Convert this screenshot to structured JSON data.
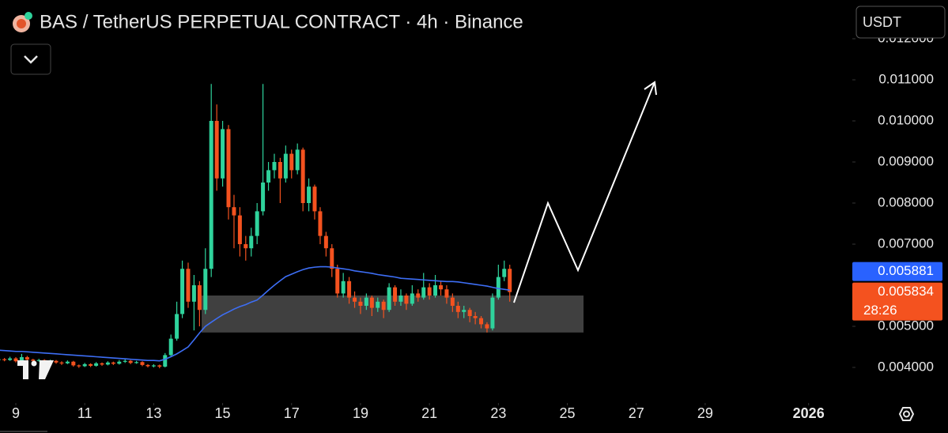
{
  "header": {
    "title": "BAS / TetherUS PERPETUAL CONTRACT · 4h · Binance",
    "currency": "USDT"
  },
  "chart_data": {
    "type": "candlestick",
    "x": [
      8.5,
      8.67,
      8.83,
      9,
      9.17,
      9.33,
      9.5,
      9.67,
      9.83,
      10,
      10.17,
      10.33,
      10.5,
      10.67,
      10.83,
      11,
      11.17,
      11.33,
      11.5,
      11.67,
      11.83,
      12,
      12.17,
      12.33,
      12.5,
      12.67,
      12.83,
      13,
      13.17,
      13.33,
      13.5,
      13.67,
      13.83,
      14,
      14.17,
      14.33,
      14.5,
      14.67,
      14.83,
      15,
      15.17,
      15.33,
      15.5,
      15.67,
      15.83,
      16,
      16.17,
      16.33,
      16.5,
      16.67,
      16.83,
      17,
      17.17,
      17.33,
      17.5,
      17.67,
      17.83,
      18,
      18.17,
      18.33,
      18.5,
      18.67,
      18.83,
      19,
      19.17,
      19.33,
      19.5,
      19.67,
      19.83,
      20,
      20.17,
      20.33,
      20.5,
      20.67,
      20.83,
      21,
      21.17,
      21.33,
      21.5,
      21.67,
      21.83,
      22,
      22.17,
      22.33,
      22.5,
      22.67,
      22.83,
      23,
      23.17,
      23.33
    ],
    "open": [
      0.00418,
      0.0042,
      0.00418,
      0.00422,
      0.00415,
      0.00425,
      0.00419,
      0.00416,
      0.00418,
      0.00414,
      0.00416,
      0.00412,
      0.0041,
      0.00414,
      0.00405,
      0.00403,
      0.00408,
      0.00404,
      0.0041,
      0.00407,
      0.00412,
      0.00409,
      0.00414,
      0.00416,
      0.00411,
      0.00413,
      0.00406,
      0.00403,
      0.00405,
      0.00402,
      0.0043,
      0.0047,
      0.0053,
      0.0064,
      0.0056,
      0.006,
      0.0054,
      0.0064,
      0.01,
      0.0086,
      0.0098,
      0.0079,
      0.0077,
      0.007,
      0.0069,
      0.0072,
      0.0078,
      0.0085,
      0.0088,
      0.009,
      0.0086,
      0.0092,
      0.0088,
      0.0093,
      0.008,
      0.0084,
      0.0078,
      0.0072,
      0.0069,
      0.0064,
      0.0058,
      0.0061,
      0.0057,
      0.0056,
      0.0055,
      0.0057,
      0.00545,
      0.0056,
      0.0054,
      0.00595,
      0.0056,
      0.00575,
      0.00555,
      0.0058,
      0.0057,
      0.00595,
      0.00575,
      0.006,
      0.0059,
      0.0057,
      0.0055,
      0.00535,
      0.0054,
      0.00525,
      0.0052,
      0.00505,
      0.00495,
      0.0057,
      0.0062,
      0.0064
    ],
    "high": [
      0.00424,
      0.00423,
      0.00426,
      0.00425,
      0.00433,
      0.00428,
      0.00421,
      0.00421,
      0.0042,
      0.00419,
      0.00418,
      0.00415,
      0.00417,
      0.00416,
      0.00407,
      0.00411,
      0.0041,
      0.00413,
      0.00412,
      0.00415,
      0.00414,
      0.00418,
      0.0042,
      0.00418,
      0.00416,
      0.00415,
      0.00408,
      0.00408,
      0.00407,
      0.00435,
      0.0048,
      0.0056,
      0.0066,
      0.00655,
      0.00625,
      0.0061,
      0.0069,
      0.0109,
      0.0104,
      0.01,
      0.0099,
      0.0082,
      0.0079,
      0.0072,
      0.0074,
      0.008,
      0.0109,
      0.009,
      0.0092,
      0.0091,
      0.0094,
      0.0093,
      0.00945,
      0.00935,
      0.0086,
      0.00845,
      0.0079,
      0.0073,
      0.007,
      0.0065,
      0.0063,
      0.0062,
      0.00585,
      0.0057,
      0.0058,
      0.00575,
      0.0057,
      0.00565,
      0.00605,
      0.006,
      0.0059,
      0.0058,
      0.006,
      0.0059,
      0.0063,
      0.00605,
      0.00625,
      0.0061,
      0.006,
      0.0058,
      0.0056,
      0.0055,
      0.00545,
      0.00535,
      0.00525,
      0.0051,
      0.0058,
      0.0065,
      0.0066,
      0.0065
    ],
    "low": [
      0.00414,
      0.00415,
      0.00416,
      0.00412,
      0.00413,
      0.00416,
      0.00413,
      0.00414,
      0.00411,
      0.00412,
      0.00409,
      0.00406,
      0.00408,
      0.00402,
      0.00399,
      0.00401,
      0.00401,
      0.00402,
      0.00404,
      0.00405,
      0.00406,
      0.00407,
      0.00411,
      0.00408,
      0.00409,
      0.00403,
      0.004,
      0.004,
      0.00398,
      0.004,
      0.00425,
      0.00465,
      0.0052,
      0.00545,
      0.0049,
      0.005,
      0.0053,
      0.0062,
      0.0083,
      0.0084,
      0.0076,
      0.0069,
      0.0067,
      0.0066,
      0.0067,
      0.007,
      0.0077,
      0.0083,
      0.0086,
      0.008,
      0.0085,
      0.0086,
      0.0087,
      0.0078,
      0.0078,
      0.0076,
      0.007,
      0.0067,
      0.0062,
      0.0057,
      0.0057,
      0.00555,
      0.00545,
      0.0053,
      0.0054,
      0.00525,
      0.00535,
      0.0052,
      0.00535,
      0.0055,
      0.0055,
      0.0054,
      0.0055,
      0.0056,
      0.00565,
      0.00565,
      0.0057,
      0.00575,
      0.00555,
      0.00535,
      0.0052,
      0.0052,
      0.0051,
      0.00505,
      0.00495,
      0.00485,
      0.0049,
      0.00565,
      0.0061,
      0.0056
    ],
    "close": [
      0.0042,
      0.00418,
      0.00422,
      0.00415,
      0.00425,
      0.00419,
      0.00416,
      0.00418,
      0.00414,
      0.00416,
      0.00412,
      0.0041,
      0.00414,
      0.00405,
      0.00403,
      0.00408,
      0.00404,
      0.0041,
      0.00407,
      0.00412,
      0.00409,
      0.00414,
      0.00416,
      0.00411,
      0.00413,
      0.00406,
      0.00403,
      0.00405,
      0.00402,
      0.0043,
      0.0047,
      0.0053,
      0.0064,
      0.0056,
      0.006,
      0.0054,
      0.0064,
      0.01,
      0.0086,
      0.0098,
      0.0079,
      0.0077,
      0.007,
      0.0069,
      0.0072,
      0.0078,
      0.0085,
      0.0088,
      0.009,
      0.0086,
      0.0092,
      0.0088,
      0.0093,
      0.008,
      0.0084,
      0.0078,
      0.0072,
      0.0069,
      0.0064,
      0.0058,
      0.0061,
      0.0057,
      0.0056,
      0.0055,
      0.0057,
      0.00545,
      0.0056,
      0.0054,
      0.00595,
      0.0056,
      0.00575,
      0.00555,
      0.0058,
      0.0057,
      0.00595,
      0.00575,
      0.006,
      0.0059,
      0.0057,
      0.0055,
      0.00535,
      0.0054,
      0.00525,
      0.0052,
      0.00505,
      0.00495,
      0.0057,
      0.0062,
      0.0064,
      0.005834
    ],
    "up_color": "#2fd39c",
    "down_color": "#f4521f",
    "moving_average": {
      "color": "#3d6ef5",
      "values": [
        0.00442,
        0.00441,
        0.0044,
        0.00439,
        0.00439,
        0.00438,
        0.00437,
        0.00436,
        0.00435,
        0.00434,
        0.00433,
        0.00432,
        0.00431,
        0.0043,
        0.00429,
        0.00428,
        0.00427,
        0.00426,
        0.00425,
        0.00424,
        0.00423,
        0.00422,
        0.00421,
        0.0042,
        0.00419,
        0.00418,
        0.00417,
        0.00417,
        0.00416,
        0.0042,
        0.00426,
        0.00433,
        0.00441,
        0.0045,
        0.00467,
        0.00484,
        0.005,
        0.0051,
        0.00519,
        0.00528,
        0.00535,
        0.00542,
        0.00548,
        0.00553,
        0.00559,
        0.00564,
        0.00576,
        0.00588,
        0.006,
        0.00611,
        0.00621,
        0.00627,
        0.00633,
        0.00638,
        0.00642,
        0.00644,
        0.00645,
        0.00645,
        0.00644,
        0.00642,
        0.0064,
        0.00638,
        0.00635,
        0.00633,
        0.00631,
        0.00629,
        0.00626,
        0.00624,
        0.00622,
        0.0062,
        0.00617,
        0.00616,
        0.00615,
        0.00614,
        0.00613,
        0.00612,
        0.00611,
        0.0061,
        0.00609,
        0.00609,
        0.00608,
        0.00606,
        0.00604,
        0.00602,
        0.006,
        0.00598,
        0.00595,
        0.00592,
        0.0059,
        0.005881
      ]
    },
    "zone": {
      "x": [
        14.39,
        25.47
      ],
      "y": [
        0.00485,
        0.00575
      ],
      "color": "#555555"
    },
    "xlim": [
      8.541,
      33.2
    ],
    "ylim": [
      0.003135,
      0.012942
    ],
    "xticks": [
      9,
      11,
      13,
      15,
      17,
      19,
      21,
      23,
      25,
      27,
      29,
      {
        "value": 32,
        "label": "2026"
      }
    ],
    "yticks": [
      {
        "value": 0.004,
        "label": "0.004000"
      },
      {
        "value": 0.005,
        "label": "0.005000"
      },
      {
        "value": 0.007,
        "label": "0.007000"
      },
      {
        "value": 0.008,
        "label": "0.008000"
      },
      {
        "value": 0.009,
        "label": "0.009000"
      },
      {
        "value": 0.01,
        "label": "0.010000"
      },
      {
        "value": 0.011,
        "label": "0.011000"
      },
      {
        "value": 0.012,
        "label": "0.012000"
      }
    ],
    "price_labels": [
      {
        "value": 0.005881,
        "label": "0.005881",
        "color": "#2962ff"
      },
      {
        "value": 0.005834,
        "label": "0.005834",
        "color": "#f4521f",
        "countdown": "28:26"
      }
    ]
  }
}
